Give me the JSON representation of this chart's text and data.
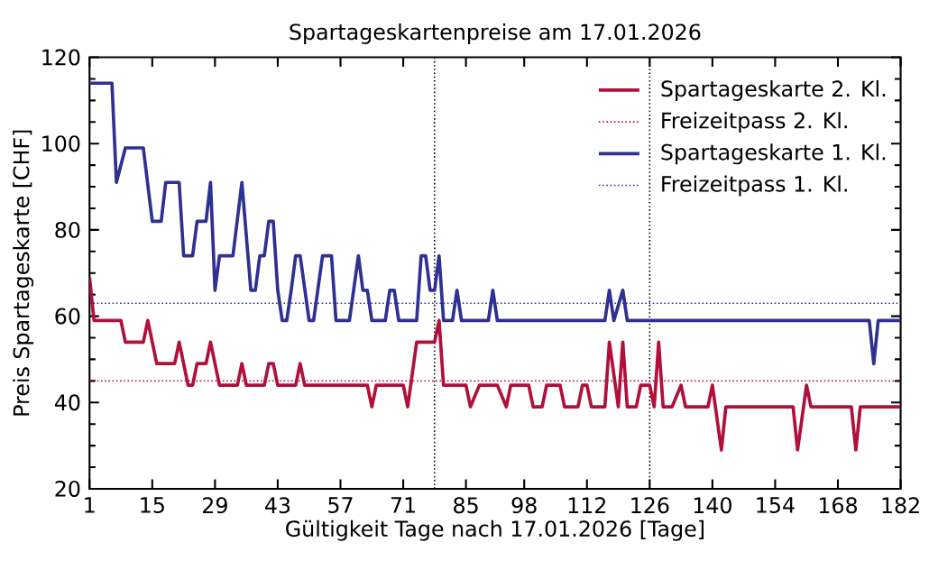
{
  "chart_data": {
    "type": "line",
    "title": "Spartageskartenpreise am 17.01.2026",
    "xlabel": "Gültigkeit Tage nach 17.01.2026 [Tage]",
    "ylabel": "Preis Spartageskarte [CHF]",
    "xlim": [
      1,
      182
    ],
    "ylim": [
      20,
      120
    ],
    "xticks": [
      1,
      15,
      29,
      43,
      57,
      71,
      85,
      98,
      112,
      126,
      140,
      154,
      168,
      182
    ],
    "yticks": [
      20,
      40,
      60,
      80,
      100,
      120
    ],
    "legend": "top right",
    "marker": "none",
    "series": [
      {
        "name": "Spartageskarte 2. Kl.",
        "color": "#b0103a",
        "line_style": "solid",
        "x": [
          1,
          2,
          8,
          9,
          13,
          14,
          16,
          20,
          21,
          23,
          24,
          25,
          27,
          28,
          30,
          34,
          35,
          36,
          40,
          41,
          42,
          43,
          47,
          48,
          49,
          63,
          64,
          65,
          71,
          72,
          74,
          78,
          79,
          80,
          85,
          86,
          88,
          92,
          94,
          95,
          99,
          100,
          102,
          103,
          106,
          107,
          110,
          111,
          112,
          113,
          116,
          117,
          119,
          120,
          121,
          123,
          124,
          126,
          127,
          128,
          129,
          131,
          133,
          134,
          139,
          140,
          142,
          143,
          158,
          159,
          161,
          162,
          171,
          172,
          173,
          182
        ],
        "values": [
          69,
          59,
          59,
          54,
          54,
          59,
          49,
          49,
          54,
          44,
          44,
          49,
          49,
          54,
          44,
          44,
          49,
          44,
          44,
          49,
          49,
          44,
          44,
          49,
          44,
          44,
          39,
          44,
          44,
          39,
          54,
          54,
          59,
          44,
          44,
          39,
          44,
          44,
          39,
          44,
          44,
          39,
          39,
          44,
          44,
          39,
          39,
          44,
          44,
          39,
          39,
          54,
          39,
          54,
          39,
          39,
          44,
          44,
          39,
          54,
          39,
          39,
          44,
          39,
          39,
          44,
          29,
          39,
          39,
          29,
          44,
          39,
          39,
          29,
          39,
          39
        ]
      },
      {
        "name": "Freizeitpass 2. Kl.",
        "color": "#b0103a",
        "line_style": "dotted",
        "x": [
          1,
          182
        ],
        "values": [
          45,
          45
        ]
      },
      {
        "name": "Spartageskarte 1. Kl.",
        "color": "#2e3192",
        "line_style": "solid",
        "x": [
          1,
          6,
          7,
          9,
          13,
          15,
          17,
          18,
          21,
          22,
          24,
          25,
          27,
          28,
          29,
          30,
          33,
          35,
          37,
          38,
          39,
          40,
          41,
          42,
          43,
          44,
          45,
          46,
          47,
          48,
          50,
          51,
          53,
          55,
          56,
          59,
          61,
          62,
          63,
          64,
          67,
          68,
          69,
          70,
          74,
          75,
          76,
          77,
          78,
          79,
          80,
          82,
          83,
          84,
          90,
          91,
          92,
          116,
          117,
          118,
          120,
          121,
          175,
          176,
          177,
          182
        ],
        "values": [
          114,
          114,
          91,
          99,
          99,
          82,
          82,
          91,
          91,
          74,
          74,
          82,
          82,
          91,
          66,
          74,
          74,
          91,
          66,
          66,
          74,
          74,
          82,
          82,
          66,
          59,
          59,
          66,
          74,
          74,
          59,
          59,
          74,
          74,
          59,
          59,
          74,
          66,
          66,
          59,
          59,
          66,
          66,
          59,
          59,
          74,
          74,
          66,
          66,
          74,
          59,
          59,
          66,
          59,
          59,
          66,
          59,
          59,
          66,
          59,
          66,
          59,
          59,
          49,
          59,
          59
        ]
      },
      {
        "name": "Freizeitpass 1. Kl.",
        "color": "#2e3192",
        "line_style": "dotted",
        "x": [
          1,
          182
        ],
        "values": [
          63,
          63
        ]
      }
    ],
    "ref_lines": [
      {
        "axis": "x",
        "value": 78,
        "color": "#000000",
        "line_style": "dotted"
      },
      {
        "axis": "x",
        "value": 126,
        "color": "#000000",
        "line_style": "dotted"
      }
    ]
  }
}
